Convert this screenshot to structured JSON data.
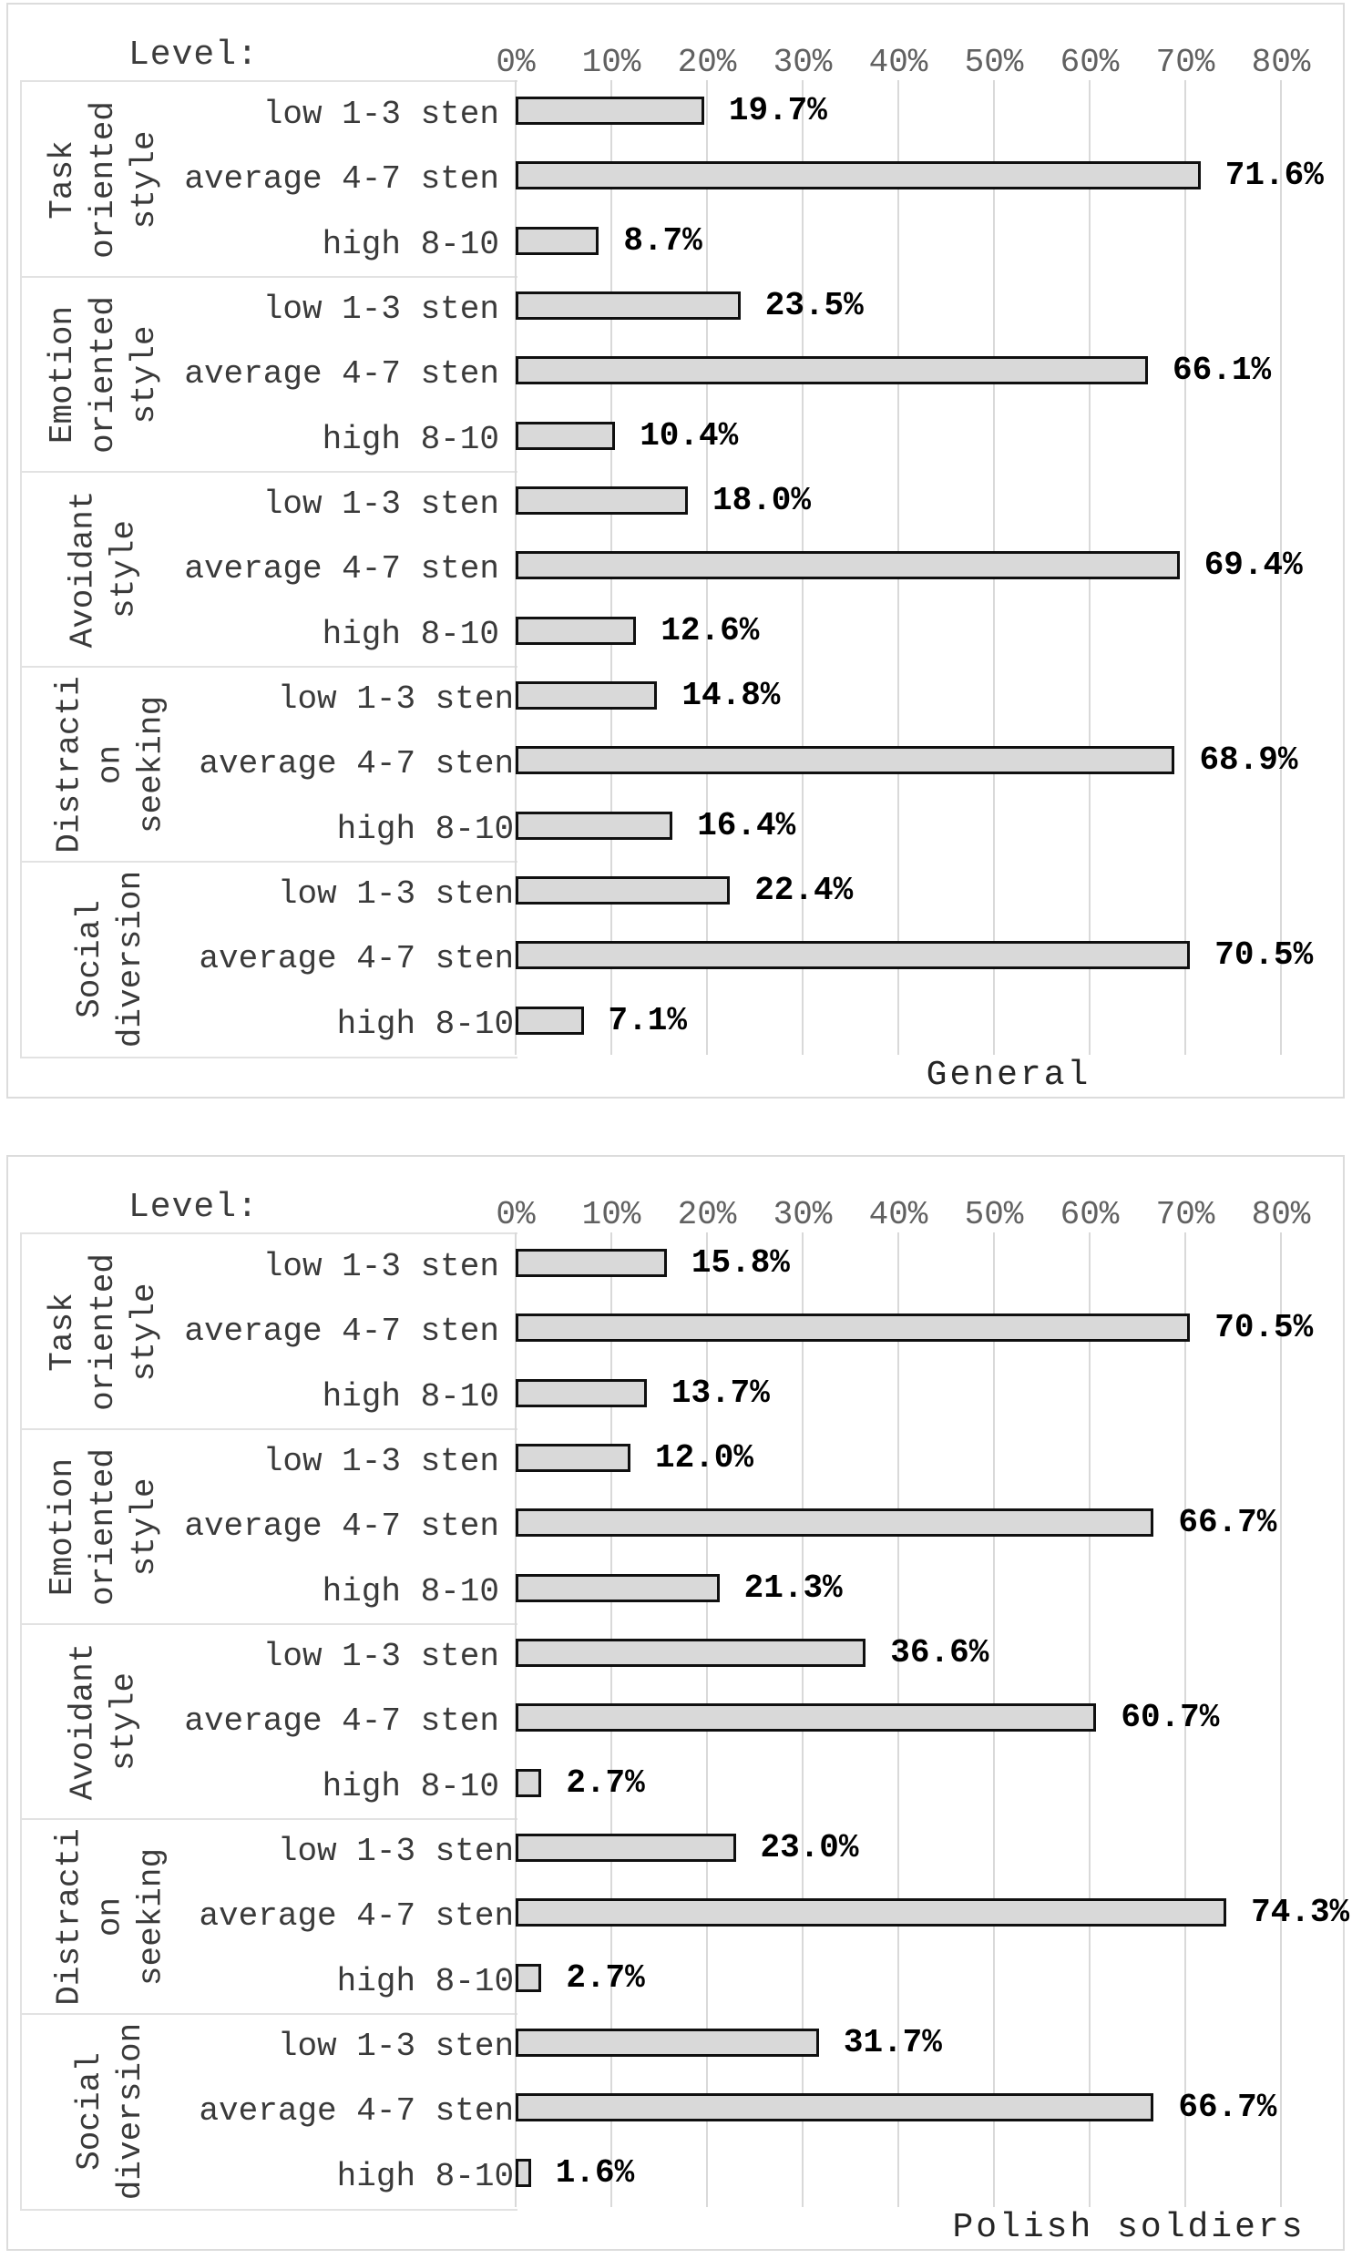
{
  "colors": {
    "bar_fill": "#d9d9d9",
    "bar_border": "#101010",
    "gridline": "#d9d9d9",
    "panel_border": "#e2e2e2",
    "chart_border": "#dcdcdc",
    "label_text": "#3a3a3a",
    "tick_text": "#616161",
    "value_text": "#000000"
  },
  "chart_data": [
    {
      "type": "bar",
      "orientation": "horizontal",
      "title": "General",
      "level_label": "Level:",
      "x_axis": {
        "tick_labels": [
          "0%",
          "10%",
          "20%",
          "30%",
          "40%",
          "50%",
          "60%",
          "70%",
          "80%"
        ],
        "min": 0,
        "max": 85,
        "step_pct": 10,
        "side": "top",
        "grid": true
      },
      "groups": [
        {
          "name": "Task oriented style",
          "name_lines": [
            "Task",
            "oriented",
            "style"
          ],
          "rows": [
            {
              "level": "low 1-3 sten",
              "value": 19.7,
              "label": "19.7%"
            },
            {
              "level": "average 4-7 sten",
              "value": 71.6,
              "label": "71.6%"
            },
            {
              "level": "high 8-10",
              "value": 8.7,
              "label": "8.7%"
            }
          ]
        },
        {
          "name": "Emotion oriented style",
          "name_lines": [
            "Emotion",
            "oriented",
            "style"
          ],
          "rows": [
            {
              "level": "low 1-3 sten",
              "value": 23.5,
              "label": "23.5%"
            },
            {
              "level": "average 4-7 sten",
              "value": 66.1,
              "label": "66.1%"
            },
            {
              "level": "high 8-10",
              "value": 10.4,
              "label": "10.4%"
            }
          ]
        },
        {
          "name": "Avoidant style",
          "name_lines": [
            "Avoidant",
            "style"
          ],
          "rows": [
            {
              "level": "low 1-3 sten",
              "value": 18.0,
              "label": "18.0%"
            },
            {
              "level": "average 4-7 sten",
              "value": 69.4,
              "label": "69.4%"
            },
            {
              "level": "high 8-10",
              "value": 12.6,
              "label": "12.6%"
            }
          ]
        },
        {
          "name": "Distraction seeking",
          "name_lines": [
            "Distracti",
            "on",
            "seeking"
          ],
          "rows": [
            {
              "level": "low 1-3 sten",
              "value": 14.8,
              "label": "14.8%"
            },
            {
              "level": "average 4-7 sten",
              "value": 68.9,
              "label": "68.9%"
            },
            {
              "level": "high 8-10",
              "value": 16.4,
              "label": "16.4%"
            }
          ]
        },
        {
          "name": "Social diversion",
          "name_lines": [
            "Social",
            "diversion"
          ],
          "rows": [
            {
              "level": "low 1-3 sten",
              "value": 22.4,
              "label": "22.4%"
            },
            {
              "level": "average 4-7 sten",
              "value": 70.5,
              "label": "70.5%"
            },
            {
              "level": "high 8-10",
              "value": 7.1,
              "label": "7.1%"
            }
          ]
        }
      ]
    },
    {
      "type": "bar",
      "orientation": "horizontal",
      "title": "Polish soldiers",
      "level_label": "Level:",
      "x_axis": {
        "tick_labels": [
          "0%",
          "10%",
          "20%",
          "30%",
          "40%",
          "50%",
          "60%",
          "70%",
          "80%"
        ],
        "min": 0,
        "max": 85,
        "step_pct": 10,
        "side": "top",
        "grid": true
      },
      "groups": [
        {
          "name": "Task oriented style",
          "name_lines": [
            "Task",
            "oriented",
            "style"
          ],
          "rows": [
            {
              "level": "low 1-3 sten",
              "value": 15.8,
              "label": "15.8%"
            },
            {
              "level": "average 4-7 sten",
              "value": 70.5,
              "label": "70.5%"
            },
            {
              "level": "high 8-10",
              "value": 13.7,
              "label": "13.7%"
            }
          ]
        },
        {
          "name": "Emotion oriented style",
          "name_lines": [
            "Emotion",
            "oriented",
            "style"
          ],
          "rows": [
            {
              "level": "low 1-3 sten",
              "value": 12.0,
              "label": "12.0%"
            },
            {
              "level": "average 4-7 sten",
              "value": 66.7,
              "label": "66.7%"
            },
            {
              "level": "high 8-10",
              "value": 21.3,
              "label": "21.3%"
            }
          ]
        },
        {
          "name": "Avoidant style",
          "name_lines": [
            "Avoidant",
            "style"
          ],
          "rows": [
            {
              "level": "low 1-3 sten",
              "value": 36.6,
              "label": "36.6%"
            },
            {
              "level": "average 4-7 sten",
              "value": 60.7,
              "label": "60.7%"
            },
            {
              "level": "high 8-10",
              "value": 2.7,
              "label": "2.7%"
            }
          ]
        },
        {
          "name": "Distraction seeking",
          "name_lines": [
            "Distracti",
            "on",
            "seeking"
          ],
          "rows": [
            {
              "level": "low 1-3 sten",
              "value": 23.0,
              "label": "23.0%"
            },
            {
              "level": "average 4-7 sten",
              "value": 74.3,
              "label": "74.3%"
            },
            {
              "level": "high 8-10",
              "value": 2.7,
              "label": "2.7%"
            }
          ]
        },
        {
          "name": "Social diversion",
          "name_lines": [
            "Social",
            "diversion"
          ],
          "rows": [
            {
              "level": "low 1-3 sten",
              "value": 31.7,
              "label": "31.7%"
            },
            {
              "level": "average 4-7 sten",
              "value": 66.7,
              "label": "66.7%"
            },
            {
              "level": "high 8-10",
              "value": 1.6,
              "label": "1.6%"
            }
          ]
        }
      ]
    }
  ]
}
